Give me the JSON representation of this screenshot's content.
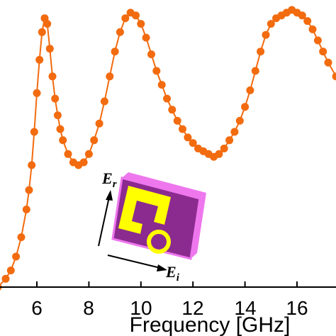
{
  "chart_data": {
    "type": "line",
    "xlabel": "Frequency [GHz]",
    "ylabel": "",
    "title": "",
    "xlim": [
      4.5,
      17.5
    ],
    "ylim": [
      0,
      1
    ],
    "xticks": [
      6,
      8,
      10,
      12,
      14,
      16
    ],
    "tick_labels": [
      "6",
      "8",
      "10",
      "12",
      "14",
      "16"
    ],
    "marker": "circle",
    "series": [
      {
        "color": "#f26b0f",
        "x": [
          4.5,
          4.8,
          5.0,
          5.2,
          5.4,
          5.6,
          5.7,
          5.8,
          5.9,
          6.0,
          6.1,
          6.2,
          6.3,
          6.4,
          6.5,
          6.6,
          6.7,
          6.8,
          6.9,
          7.0,
          7.2,
          7.4,
          7.6,
          7.8,
          8.0,
          8.2,
          8.4,
          8.6,
          8.8,
          9.0,
          9.2,
          9.4,
          9.6,
          9.8,
          10.0,
          10.2,
          10.4,
          10.6,
          10.8,
          11.0,
          11.2,
          11.4,
          11.6,
          11.8,
          12.0,
          12.2,
          12.4,
          12.6,
          12.8,
          13.0,
          13.2,
          13.4,
          13.6,
          13.8,
          14.0,
          14.2,
          14.4,
          14.6,
          14.8,
          15.0,
          15.2,
          15.4,
          15.6,
          15.8,
          16.0,
          16.2,
          16.4,
          16.6,
          16.8,
          17.0,
          17.2,
          17.5
        ],
        "values": [
          0.0,
          0.03,
          0.06,
          0.11,
          0.18,
          0.28,
          0.35,
          0.44,
          0.56,
          0.7,
          0.82,
          0.92,
          0.97,
          0.95,
          0.86,
          0.76,
          0.68,
          0.62,
          0.57,
          0.53,
          0.48,
          0.45,
          0.44,
          0.45,
          0.48,
          0.53,
          0.59,
          0.67,
          0.76,
          0.85,
          0.92,
          0.97,
          0.99,
          0.98,
          0.95,
          0.9,
          0.84,
          0.78,
          0.73,
          0.68,
          0.64,
          0.6,
          0.57,
          0.54,
          0.52,
          0.5,
          0.49,
          0.48,
          0.47,
          0.48,
          0.5,
          0.53,
          0.56,
          0.6,
          0.65,
          0.71,
          0.78,
          0.85,
          0.91,
          0.95,
          0.97,
          0.98,
          0.99,
          1.0,
          0.99,
          0.98,
          0.96,
          0.93,
          0.89,
          0.85,
          0.81,
          0.76
        ]
      }
    ],
    "inset": {
      "e_r_main": "E",
      "e_r_sub": "r",
      "e_i_main": "E",
      "e_i_sub": "i",
      "colors": {
        "face": "#8b2a8f",
        "edge": "#ee77ee",
        "ring": "#ffff00"
      }
    }
  }
}
